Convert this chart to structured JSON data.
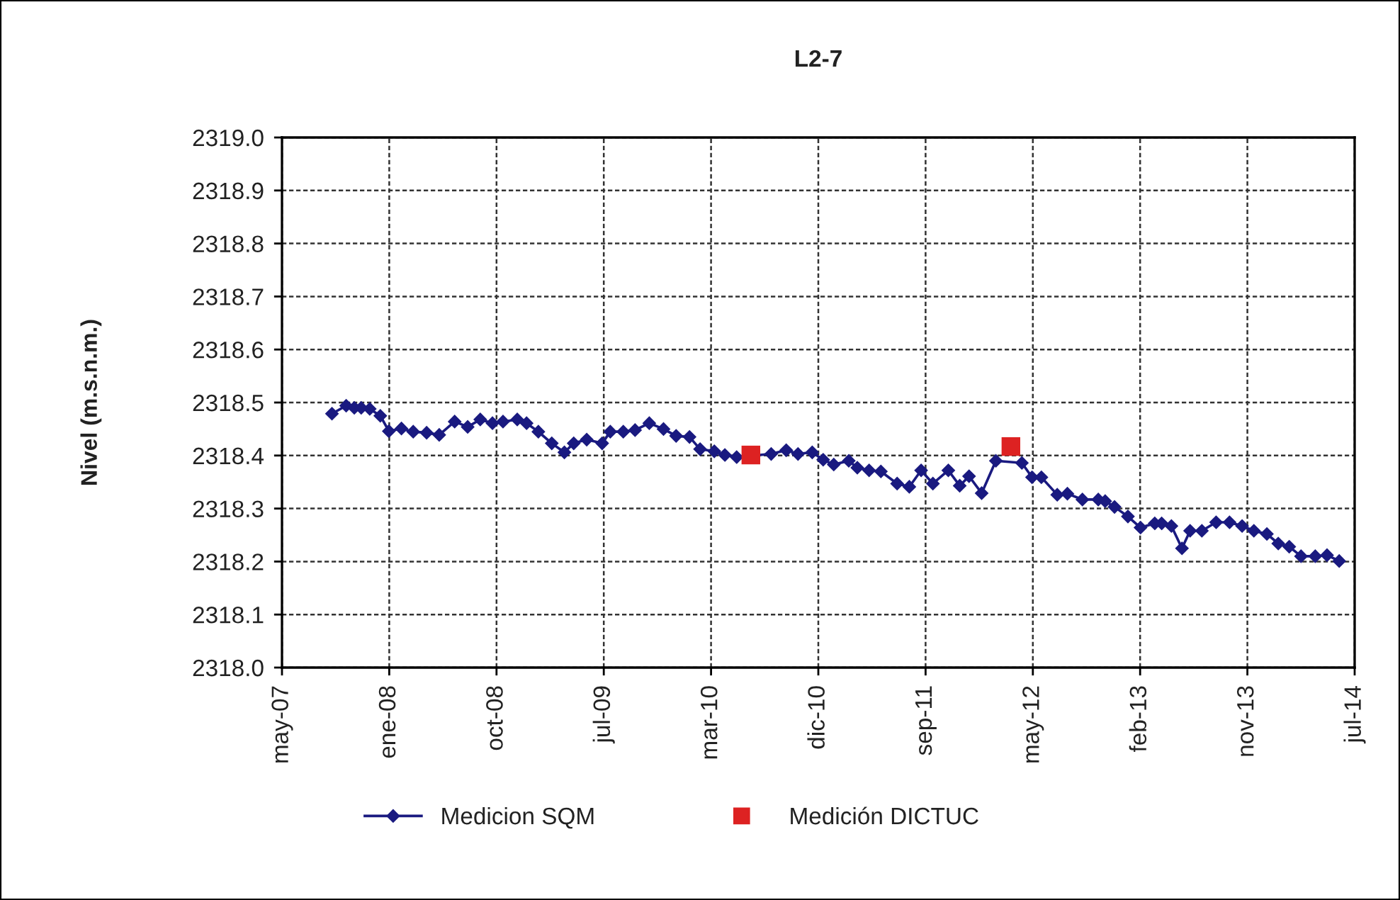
{
  "chart_data": {
    "type": "line",
    "title": "L2-7",
    "ylabel": "Nivel (m.s.n.m.)",
    "xlim": [
      "2007-05-01",
      "2014-07-23"
    ],
    "xticks": [
      {
        "value": "2007-05-01",
        "label": "may-07"
      },
      {
        "value": "2008-01-20",
        "label": "ene-08"
      },
      {
        "value": "2008-10-10",
        "label": "oct-08"
      },
      {
        "value": "2009-07-01",
        "label": "jul-09"
      },
      {
        "value": "2010-03-22",
        "label": "mar-10"
      },
      {
        "value": "2010-12-11",
        "label": "dic-10"
      },
      {
        "value": "2011-09-01",
        "label": "sep-11"
      },
      {
        "value": "2012-05-22",
        "label": "may-12"
      },
      {
        "value": "2013-02-10",
        "label": "feb-13"
      },
      {
        "value": "2013-11-01",
        "label": "nov-13"
      },
      {
        "value": "2014-07-23",
        "label": "jul-14"
      }
    ],
    "ylim": [
      2318.0,
      2319.0
    ],
    "yticks": [
      {
        "value": 2318.0,
        "label": "2318.0"
      },
      2318.1,
      2318.2,
      2318.3,
      2318.4,
      2318.5,
      2318.6,
      2318.7,
      2318.8,
      2318.9,
      {
        "value": 2319.0,
        "label": "2319.0"
      }
    ],
    "grid": true,
    "legend": "bottom",
    "series": [
      {
        "name": "Medicion SQM",
        "color": "#1a1a80",
        "marker": "diamond",
        "line_style": "solid",
        "x": [
          "2007-09-01",
          "2007-10-06",
          "2007-10-26",
          "2007-11-12",
          "2007-12-03",
          "2007-12-29",
          "2008-01-19",
          "2008-02-19",
          "2008-03-19",
          "2008-04-21",
          "2008-05-22",
          "2008-06-29",
          "2008-07-31",
          "2008-08-31",
          "2008-09-30",
          "2008-10-26",
          "2008-11-30",
          "2008-12-23",
          "2009-01-21",
          "2009-02-23",
          "2009-03-26",
          "2009-04-18",
          "2009-05-20",
          "2009-06-27",
          "2009-07-17",
          "2009-08-18",
          "2009-09-16",
          "2009-10-21",
          "2009-11-25",
          "2009-12-26",
          "2010-01-28",
          "2010-02-23",
          "2010-03-30",
          "2010-04-25",
          "2010-05-24",
          "2010-08-17",
          "2010-09-23",
          "2010-10-22",
          "2010-11-26",
          "2010-12-23",
          "2011-01-18",
          "2011-02-24",
          "2011-03-17",
          "2011-04-15",
          "2011-05-14",
          "2011-06-23",
          "2011-07-23",
          "2011-08-21",
          "2011-09-19",
          "2011-10-27",
          "2011-11-24",
          "2011-12-17",
          "2012-01-17",
          "2012-02-21",
          "2012-04-25",
          "2012-05-20",
          "2012-06-12",
          "2012-07-21",
          "2012-08-15",
          "2012-09-21",
          "2012-10-30",
          "2012-11-16",
          "2012-12-09",
          "2013-01-11",
          "2013-02-11",
          "2013-03-18",
          "2013-04-04",
          "2013-04-28",
          "2013-05-24",
          "2013-06-13",
          "2013-07-12",
          "2013-08-16",
          "2013-09-18",
          "2013-10-19",
          "2013-11-17",
          "2013-12-19",
          "2014-01-16",
          "2014-02-12",
          "2014-03-13",
          "2014-04-17",
          "2014-05-16",
          "2014-06-15"
        ],
        "values": [
          2318.479,
          2318.494,
          2318.49,
          2318.49,
          2318.488,
          2318.475,
          2318.446,
          2318.451,
          2318.445,
          2318.443,
          2318.439,
          2318.464,
          2318.454,
          2318.468,
          2318.461,
          2318.464,
          2318.468,
          2318.461,
          2318.445,
          2318.423,
          2318.406,
          2318.423,
          2318.43,
          2318.423,
          2318.445,
          2318.445,
          2318.448,
          2318.461,
          2318.45,
          2318.437,
          2318.435,
          2318.412,
          2318.408,
          2318.401,
          2318.397,
          2318.403,
          2318.41,
          2318.403,
          2318.406,
          2318.392,
          2318.383,
          2318.39,
          2318.377,
          2318.372,
          2318.37,
          2318.347,
          2318.341,
          2318.372,
          2318.347,
          2318.372,
          2318.343,
          2318.361,
          2318.329,
          2318.39,
          2318.386,
          2318.359,
          2318.359,
          2318.326,
          2318.328,
          2318.317,
          2318.317,
          2318.314,
          2318.303,
          2318.285,
          2318.264,
          2318.272,
          2318.272,
          2318.267,
          2318.225,
          2318.258,
          2318.258,
          2318.274,
          2318.274,
          2318.267,
          2318.258,
          2318.252,
          2318.234,
          2318.228,
          2318.21,
          2318.21,
          2318.212,
          2318.201
        ]
      },
      {
        "name": "Medición DICTUC",
        "type": "scatter",
        "color": "#dd2222",
        "marker": "square",
        "x": [
          "2010-06-28",
          "2012-03-29"
        ],
        "values": [
          2318.401,
          2318.417
        ]
      }
    ]
  }
}
